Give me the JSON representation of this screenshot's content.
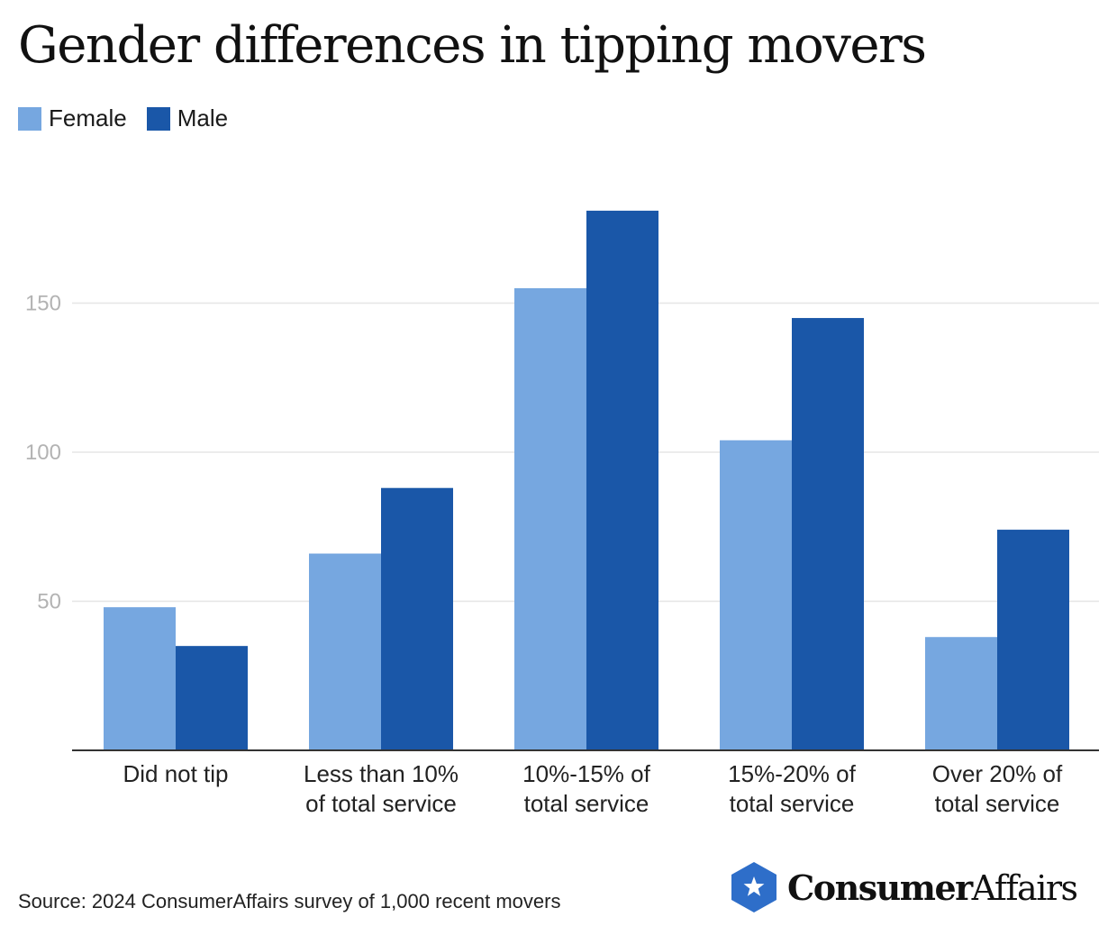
{
  "title": "Gender differences in tipping movers",
  "source": "Source: 2024 ConsumerAffairs survey of 1,000 recent movers",
  "brand": {
    "name_strong": "Consumer",
    "name_light": "Affairs",
    "icon": "star-hexagon-icon"
  },
  "colors": {
    "female": "#76a7e0",
    "male": "#1a57a8",
    "gridline": "#e6e6e6",
    "axis": "#333333",
    "brand": "#2e6ec9"
  },
  "chart_data": {
    "type": "bar",
    "title": "Gender differences in tipping movers",
    "categories": [
      [
        "Did not tip"
      ],
      [
        "Less than 10%",
        "of total service"
      ],
      [
        "10%-15% of",
        "total service"
      ],
      [
        "15%-20% of",
        "total service"
      ],
      [
        "Over 20% of",
        "total service"
      ]
    ],
    "series": [
      {
        "name": "Female",
        "values": [
          48,
          66,
          155,
          104,
          38
        ]
      },
      {
        "name": "Male",
        "values": [
          35,
          88,
          181,
          145,
          74
        ]
      }
    ],
    "yticks": [
      50,
      100,
      150
    ],
    "ylim": [
      0,
      195
    ],
    "grid": true,
    "legend": "top-left",
    "xlabel": "",
    "ylabel": ""
  }
}
